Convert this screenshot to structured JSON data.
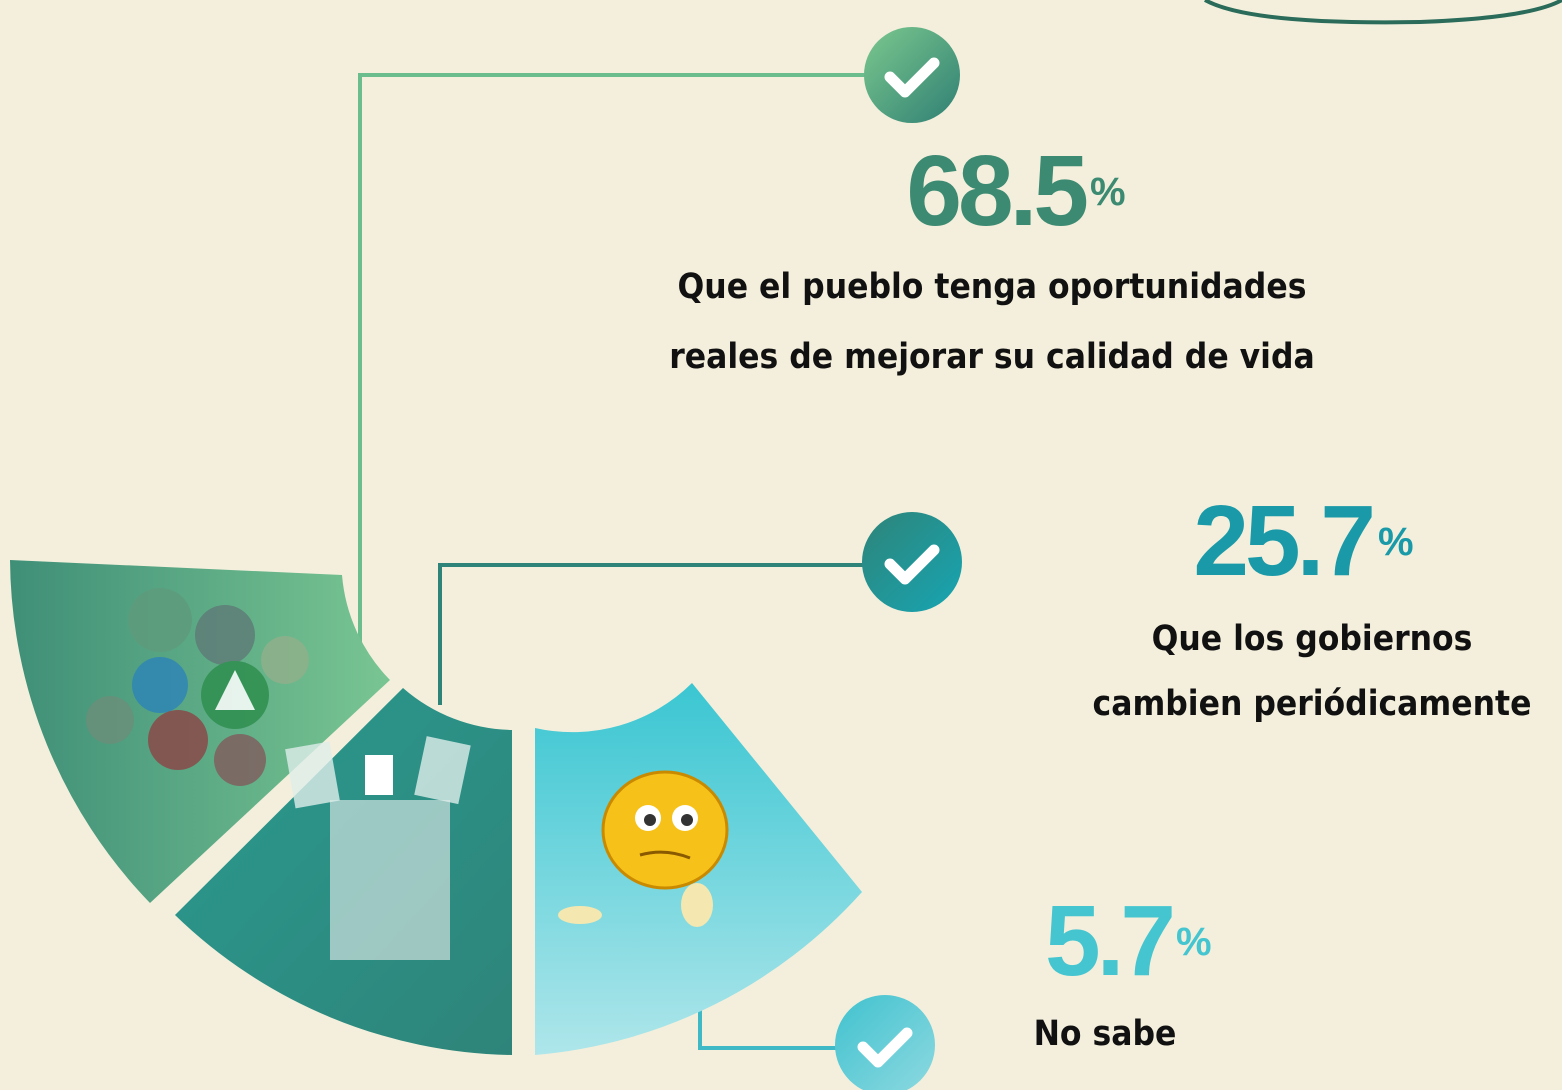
{
  "items": [
    {
      "value": 68.5,
      "unit": "%",
      "lines": [
        "Que el pueblo tenga oportunidades",
        "reales  de mejorar su calidad de vida"
      ]
    },
    {
      "value": 25.7,
      "unit": "%",
      "lines": [
        "Que los gobiernos",
        "cambien periódicamente"
      ]
    },
    {
      "value": 5.7,
      "unit": "%",
      "lines": [
        "No sabe"
      ]
    }
  ]
}
